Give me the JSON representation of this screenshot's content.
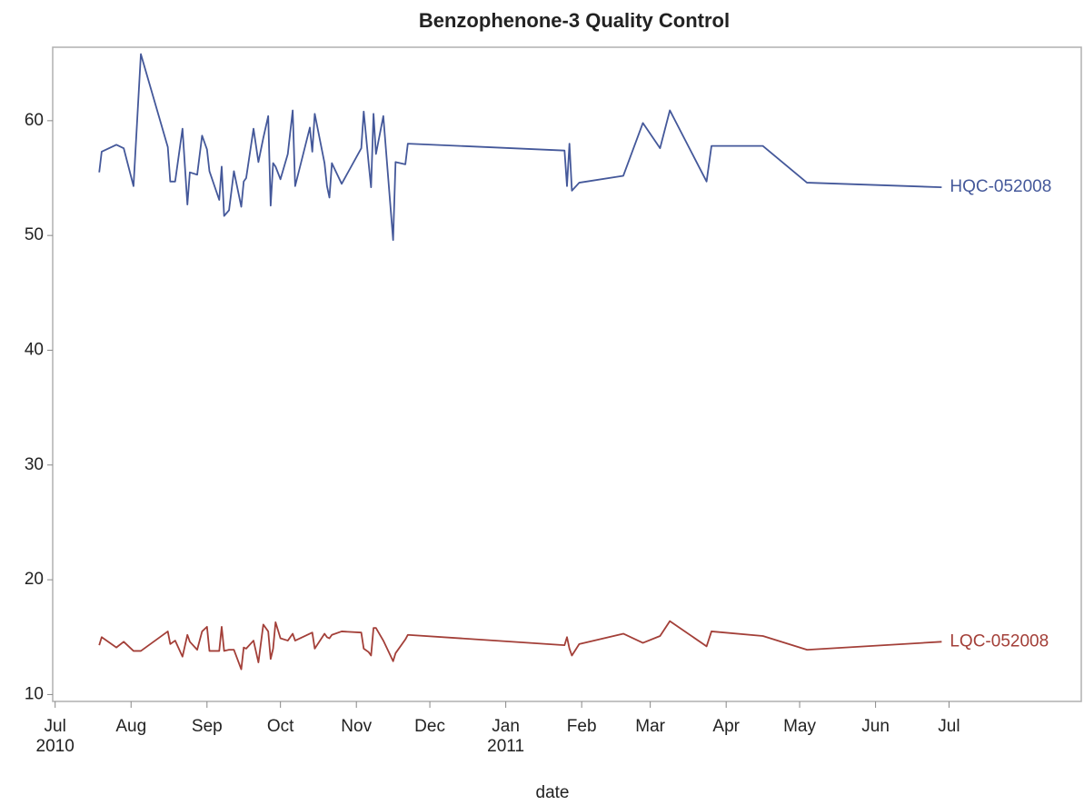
{
  "chart_data": {
    "type": "line",
    "title": "Benzophenone-3 Quality Control",
    "xlabel": "date",
    "x": [
      "2010-07-19",
      "2010-07-20",
      "2010-07-26",
      "2010-07-29",
      "2010-08-02",
      "2010-08-05",
      "2010-08-16",
      "2010-08-17",
      "2010-08-19",
      "2010-08-22",
      "2010-08-24",
      "2010-08-25",
      "2010-08-28",
      "2010-08-30",
      "2010-09-01",
      "2010-09-02",
      "2010-09-06",
      "2010-09-07",
      "2010-09-08",
      "2010-09-10",
      "2010-09-12",
      "2010-09-15",
      "2010-09-16",
      "2010-09-17",
      "2010-09-20",
      "2010-09-22",
      "2010-09-24",
      "2010-09-26",
      "2010-09-27",
      "2010-09-28",
      "2010-09-29",
      "2010-10-01",
      "2010-10-04",
      "2010-10-06",
      "2010-10-07",
      "2010-10-13",
      "2010-10-14",
      "2010-10-15",
      "2010-10-19",
      "2010-10-20",
      "2010-10-21",
      "2010-10-22",
      "2010-10-26",
      "2010-11-03",
      "2010-11-04",
      "2010-11-06",
      "2010-11-07",
      "2010-11-08",
      "2010-11-09",
      "2010-11-12",
      "2010-11-16",
      "2010-11-17",
      "2010-11-21",
      "2010-11-22",
      "2011-01-25",
      "2011-01-26",
      "2011-01-27",
      "2011-01-28",
      "2011-01-31",
      "2011-02-18",
      "2011-02-26",
      "2011-03-05",
      "2011-03-09",
      "2011-03-24",
      "2011-03-26",
      "2011-04-16",
      "2011-05-04",
      "2011-06-28"
    ],
    "series": [
      {
        "name": "HQC-052008",
        "color": "#44589a",
        "values": [
          55.5,
          57.3,
          57.9,
          57.6,
          54.3,
          65.8,
          57.7,
          54.7,
          54.7,
          59.3,
          52.7,
          55.5,
          55.3,
          58.7,
          57.5,
          55.6,
          53.1,
          56.0,
          51.7,
          52.2,
          55.6,
          52.5,
          54.7,
          55.0,
          59.3,
          56.4,
          58.5,
          60.4,
          52.6,
          56.3,
          56.0,
          54.9,
          57.1,
          60.9,
          54.3,
          59.4,
          57.3,
          60.6,
          56.3,
          54.3,
          53.3,
          56.3,
          54.5,
          57.6,
          60.8,
          56.3,
          54.2,
          60.6,
          57.1,
          60.4,
          49.6,
          56.4,
          56.2,
          58.0,
          57.4,
          54.3,
          58.0,
          53.9,
          54.6,
          55.2,
          59.8,
          57.6,
          60.9,
          54.7,
          57.8,
          57.8,
          54.6,
          54.2
        ]
      },
      {
        "name": "LQC-052008",
        "color": "#a33f38",
        "values": [
          14.3,
          15.0,
          14.1,
          14.6,
          13.8,
          13.8,
          15.5,
          14.4,
          14.7,
          13.3,
          15.2,
          14.6,
          13.9,
          15.5,
          15.9,
          13.8,
          13.8,
          15.9,
          13.8,
          13.9,
          13.9,
          12.2,
          14.1,
          14.0,
          14.7,
          12.8,
          16.1,
          15.5,
          13.1,
          14.0,
          16.3,
          14.9,
          14.7,
          15.3,
          14.7,
          15.3,
          15.4,
          14.0,
          15.3,
          15.0,
          14.9,
          15.2,
          15.5,
          15.4,
          14.0,
          13.7,
          13.4,
          15.8,
          15.8,
          14.7,
          12.9,
          13.6,
          14.8,
          15.2,
          14.3,
          15.0,
          14.0,
          13.4,
          14.4,
          15.3,
          14.5,
          15.1,
          16.4,
          14.2,
          15.5,
          15.1,
          13.9,
          14.6
        ]
      }
    ],
    "xlim": [
      "2010-06-30",
      "2011-08-24"
    ],
    "xticks": [
      {
        "value": "2010-07-01",
        "label": "Jul\n2010"
      },
      {
        "value": "2010-08-01",
        "label": "Aug"
      },
      {
        "value": "2010-09-01",
        "label": "Sep"
      },
      {
        "value": "2010-10-01",
        "label": "Oct"
      },
      {
        "value": "2010-11-01",
        "label": "Nov"
      },
      {
        "value": "2010-12-01",
        "label": "Dec"
      },
      {
        "value": "2011-01-01",
        "label": "Jan\n2011"
      },
      {
        "value": "2011-02-01",
        "label": "Feb"
      },
      {
        "value": "2011-03-01",
        "label": "Mar"
      },
      {
        "value": "2011-04-01",
        "label": "Apr"
      },
      {
        "value": "2011-05-01",
        "label": "May"
      },
      {
        "value": "2011-06-01",
        "label": "Jun"
      },
      {
        "value": "2011-07-01",
        "label": "Jul"
      }
    ],
    "ylim": [
      9.4,
      66.4
    ],
    "yticks": [
      10,
      20,
      30,
      40,
      50,
      60
    ]
  }
}
